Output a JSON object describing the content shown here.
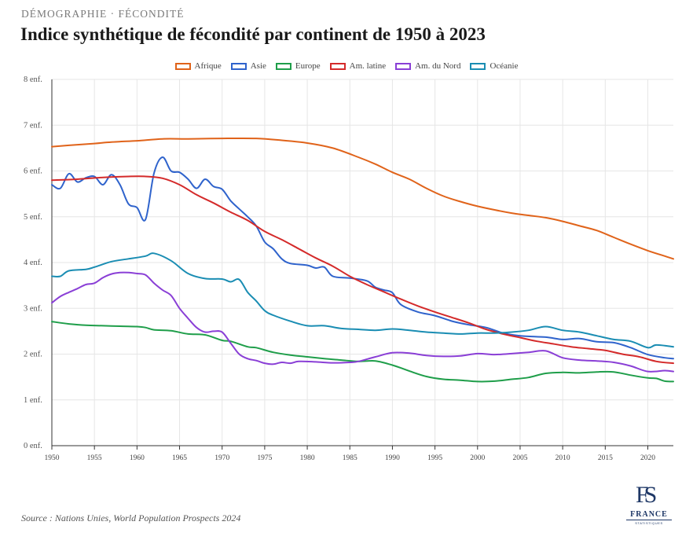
{
  "header": {
    "kicker": "DÉMOGRAPHIE · FÉCONDITÉ",
    "title": "Indice synthétique de fécondité par continent de 1950 à 2023"
  },
  "source": "Source : Nations Unies, World Population Prospects 2024",
  "logo": {
    "mark": "FS",
    "word": "FRANCE",
    "sub": "STATISTIQUES"
  },
  "colors": {
    "grid": "#e6e6e6",
    "axis": "#333333"
  },
  "chart_data": {
    "type": "line",
    "title": "Indice synthétique de fécondité par continent de 1950 à 2023",
    "xlim": [
      1950,
      2023
    ],
    "ylim": [
      0,
      8
    ],
    "x_ticks": [
      1950,
      1955,
      1960,
      1965,
      1970,
      1975,
      1980,
      1985,
      1990,
      1995,
      2000,
      2005,
      2010,
      2015,
      2020
    ],
    "y_ticks": [
      0,
      1,
      2,
      3,
      4,
      5,
      6,
      7,
      8
    ],
    "y_tick_suffix": " enf.",
    "grid": true,
    "legend_position": "top-center",
    "series": [
      {
        "name": "Afrique",
        "color": "#e0631a",
        "points": [
          [
            1950,
            6.53
          ],
          [
            1952,
            6.56
          ],
          [
            1955,
            6.6
          ],
          [
            1957,
            6.63
          ],
          [
            1960,
            6.66
          ],
          [
            1963,
            6.7
          ],
          [
            1966,
            6.7
          ],
          [
            1970,
            6.71
          ],
          [
            1974,
            6.71
          ],
          [
            1977,
            6.67
          ],
          [
            1980,
            6.61
          ],
          [
            1983,
            6.5
          ],
          [
            1986,
            6.3
          ],
          [
            1988,
            6.15
          ],
          [
            1990,
            5.97
          ],
          [
            1992,
            5.82
          ],
          [
            1994,
            5.62
          ],
          [
            1996,
            5.45
          ],
          [
            1998,
            5.33
          ],
          [
            2000,
            5.23
          ],
          [
            2002,
            5.15
          ],
          [
            2004,
            5.08
          ],
          [
            2006,
            5.03
          ],
          [
            2008,
            4.98
          ],
          [
            2010,
            4.9
          ],
          [
            2012,
            4.8
          ],
          [
            2014,
            4.7
          ],
          [
            2016,
            4.55
          ],
          [
            2018,
            4.4
          ],
          [
            2020,
            4.26
          ],
          [
            2022,
            4.14
          ],
          [
            2023,
            4.08
          ]
        ]
      },
      {
        "name": "Asie",
        "color": "#2f63cc",
        "points": [
          [
            1950,
            5.7
          ],
          [
            1951,
            5.62
          ],
          [
            1952,
            5.94
          ],
          [
            1953,
            5.76
          ],
          [
            1954,
            5.85
          ],
          [
            1955,
            5.88
          ],
          [
            1956,
            5.7
          ],
          [
            1957,
            5.92
          ],
          [
            1958,
            5.7
          ],
          [
            1959,
            5.28
          ],
          [
            1960,
            5.2
          ],
          [
            1961,
            4.94
          ],
          [
            1962,
            5.95
          ],
          [
            1963,
            6.3
          ],
          [
            1964,
            6.0
          ],
          [
            1965,
            5.97
          ],
          [
            1966,
            5.82
          ],
          [
            1967,
            5.62
          ],
          [
            1968,
            5.82
          ],
          [
            1969,
            5.66
          ],
          [
            1970,
            5.6
          ],
          [
            1971,
            5.35
          ],
          [
            1972,
            5.17
          ],
          [
            1973,
            5.0
          ],
          [
            1974,
            4.8
          ],
          [
            1975,
            4.45
          ],
          [
            1976,
            4.3
          ],
          [
            1977,
            4.08
          ],
          [
            1978,
            3.98
          ],
          [
            1980,
            3.94
          ],
          [
            1981,
            3.88
          ],
          [
            1982,
            3.9
          ],
          [
            1983,
            3.7
          ],
          [
            1985,
            3.66
          ],
          [
            1987,
            3.6
          ],
          [
            1988,
            3.46
          ],
          [
            1989,
            3.4
          ],
          [
            1990,
            3.34
          ],
          [
            1991,
            3.08
          ],
          [
            1993,
            2.92
          ],
          [
            1995,
            2.84
          ],
          [
            1997,
            2.72
          ],
          [
            1999,
            2.64
          ],
          [
            2001,
            2.58
          ],
          [
            2003,
            2.46
          ],
          [
            2005,
            2.4
          ],
          [
            2008,
            2.37
          ],
          [
            2010,
            2.32
          ],
          [
            2012,
            2.34
          ],
          [
            2014,
            2.27
          ],
          [
            2016,
            2.25
          ],
          [
            2018,
            2.14
          ],
          [
            2020,
            1.99
          ],
          [
            2022,
            1.92
          ],
          [
            2023,
            1.9
          ]
        ]
      },
      {
        "name": "Europe",
        "color": "#1f9e4a",
        "points": [
          [
            1950,
            2.71
          ],
          [
            1952,
            2.66
          ],
          [
            1954,
            2.63
          ],
          [
            1956,
            2.62
          ],
          [
            1958,
            2.61
          ],
          [
            1960,
            2.6
          ],
          [
            1961,
            2.58
          ],
          [
            1962,
            2.53
          ],
          [
            1964,
            2.51
          ],
          [
            1966,
            2.44
          ],
          [
            1968,
            2.42
          ],
          [
            1970,
            2.3
          ],
          [
            1971,
            2.28
          ],
          [
            1973,
            2.16
          ],
          [
            1974,
            2.14
          ],
          [
            1976,
            2.04
          ],
          [
            1978,
            1.98
          ],
          [
            1980,
            1.94
          ],
          [
            1982,
            1.9
          ],
          [
            1984,
            1.87
          ],
          [
            1986,
            1.84
          ],
          [
            1988,
            1.85
          ],
          [
            1990,
            1.76
          ],
          [
            1992,
            1.63
          ],
          [
            1994,
            1.51
          ],
          [
            1996,
            1.45
          ],
          [
            1998,
            1.43
          ],
          [
            2000,
            1.4
          ],
          [
            2002,
            1.41
          ],
          [
            2004,
            1.45
          ],
          [
            2006,
            1.49
          ],
          [
            2008,
            1.58
          ],
          [
            2010,
            1.6
          ],
          [
            2012,
            1.59
          ],
          [
            2014,
            1.61
          ],
          [
            2016,
            1.61
          ],
          [
            2018,
            1.54
          ],
          [
            2020,
            1.48
          ],
          [
            2021,
            1.47
          ],
          [
            2022,
            1.41
          ],
          [
            2023,
            1.4
          ]
        ]
      },
      {
        "name": "Am. latine",
        "color": "#d42a2a",
        "points": [
          [
            1950,
            5.8
          ],
          [
            1953,
            5.82
          ],
          [
            1956,
            5.86
          ],
          [
            1959,
            5.88
          ],
          [
            1961,
            5.88
          ],
          [
            1963,
            5.84
          ],
          [
            1965,
            5.7
          ],
          [
            1967,
            5.48
          ],
          [
            1969,
            5.3
          ],
          [
            1971,
            5.1
          ],
          [
            1973,
            4.92
          ],
          [
            1975,
            4.68
          ],
          [
            1977,
            4.5
          ],
          [
            1979,
            4.3
          ],
          [
            1981,
            4.1
          ],
          [
            1983,
            3.92
          ],
          [
            1985,
            3.7
          ],
          [
            1987,
            3.52
          ],
          [
            1989,
            3.36
          ],
          [
            1991,
            3.2
          ],
          [
            1993,
            3.05
          ],
          [
            1995,
            2.92
          ],
          [
            1997,
            2.8
          ],
          [
            1999,
            2.68
          ],
          [
            2001,
            2.54
          ],
          [
            2003,
            2.44
          ],
          [
            2005,
            2.36
          ],
          [
            2007,
            2.28
          ],
          [
            2009,
            2.22
          ],
          [
            2011,
            2.16
          ],
          [
            2013,
            2.12
          ],
          [
            2015,
            2.08
          ],
          [
            2017,
            2.0
          ],
          [
            2019,
            1.94
          ],
          [
            2021,
            1.84
          ],
          [
            2023,
            1.8
          ]
        ]
      },
      {
        "name": "Am. du Nord",
        "color": "#8a3fd6",
        "points": [
          [
            1950,
            3.12
          ],
          [
            1951,
            3.26
          ],
          [
            1952,
            3.35
          ],
          [
            1953,
            3.43
          ],
          [
            1954,
            3.52
          ],
          [
            1955,
            3.55
          ],
          [
            1956,
            3.67
          ],
          [
            1957,
            3.75
          ],
          [
            1958,
            3.78
          ],
          [
            1959,
            3.78
          ],
          [
            1960,
            3.76
          ],
          [
            1961,
            3.73
          ],
          [
            1962,
            3.55
          ],
          [
            1963,
            3.4
          ],
          [
            1964,
            3.28
          ],
          [
            1965,
            3.0
          ],
          [
            1966,
            2.78
          ],
          [
            1967,
            2.58
          ],
          [
            1968,
            2.48
          ],
          [
            1969,
            2.5
          ],
          [
            1970,
            2.48
          ],
          [
            1971,
            2.24
          ],
          [
            1972,
            2.0
          ],
          [
            1973,
            1.9
          ],
          [
            1974,
            1.86
          ],
          [
            1975,
            1.8
          ],
          [
            1976,
            1.78
          ],
          [
            1977,
            1.82
          ],
          [
            1978,
            1.8
          ],
          [
            1979,
            1.84
          ],
          [
            1981,
            1.83
          ],
          [
            1983,
            1.81
          ],
          [
            1985,
            1.82
          ],
          [
            1986,
            1.84
          ],
          [
            1988,
            1.94
          ],
          [
            1990,
            2.03
          ],
          [
            1992,
            2.02
          ],
          [
            1994,
            1.97
          ],
          [
            1996,
            1.95
          ],
          [
            1998,
            1.96
          ],
          [
            2000,
            2.01
          ],
          [
            2002,
            1.99
          ],
          [
            2004,
            2.01
          ],
          [
            2006,
            2.04
          ],
          [
            2008,
            2.07
          ],
          [
            2010,
            1.92
          ],
          [
            2012,
            1.87
          ],
          [
            2014,
            1.85
          ],
          [
            2016,
            1.82
          ],
          [
            2018,
            1.74
          ],
          [
            2020,
            1.62
          ],
          [
            2022,
            1.64
          ],
          [
            2023,
            1.62
          ]
        ]
      },
      {
        "name": "Océanie",
        "color": "#1a8db3",
        "points": [
          [
            1950,
            3.7
          ],
          [
            1951,
            3.7
          ],
          [
            1952,
            3.82
          ],
          [
            1954,
            3.85
          ],
          [
            1955,
            3.9
          ],
          [
            1957,
            4.02
          ],
          [
            1959,
            4.08
          ],
          [
            1961,
            4.14
          ],
          [
            1962,
            4.2
          ],
          [
            1964,
            4.04
          ],
          [
            1966,
            3.76
          ],
          [
            1968,
            3.65
          ],
          [
            1970,
            3.64
          ],
          [
            1971,
            3.58
          ],
          [
            1972,
            3.63
          ],
          [
            1973,
            3.35
          ],
          [
            1974,
            3.16
          ],
          [
            1975,
            2.95
          ],
          [
            1976,
            2.85
          ],
          [
            1978,
            2.72
          ],
          [
            1980,
            2.62
          ],
          [
            1982,
            2.62
          ],
          [
            1984,
            2.56
          ],
          [
            1986,
            2.54
          ],
          [
            1988,
            2.52
          ],
          [
            1990,
            2.55
          ],
          [
            1992,
            2.52
          ],
          [
            1994,
            2.48
          ],
          [
            1996,
            2.46
          ],
          [
            1998,
            2.44
          ],
          [
            2000,
            2.46
          ],
          [
            2002,
            2.46
          ],
          [
            2004,
            2.48
          ],
          [
            2006,
            2.52
          ],
          [
            2008,
            2.6
          ],
          [
            2010,
            2.52
          ],
          [
            2012,
            2.48
          ],
          [
            2014,
            2.4
          ],
          [
            2016,
            2.32
          ],
          [
            2018,
            2.28
          ],
          [
            2020,
            2.14
          ],
          [
            2021,
            2.2
          ],
          [
            2023,
            2.16
          ]
        ]
      }
    ]
  }
}
